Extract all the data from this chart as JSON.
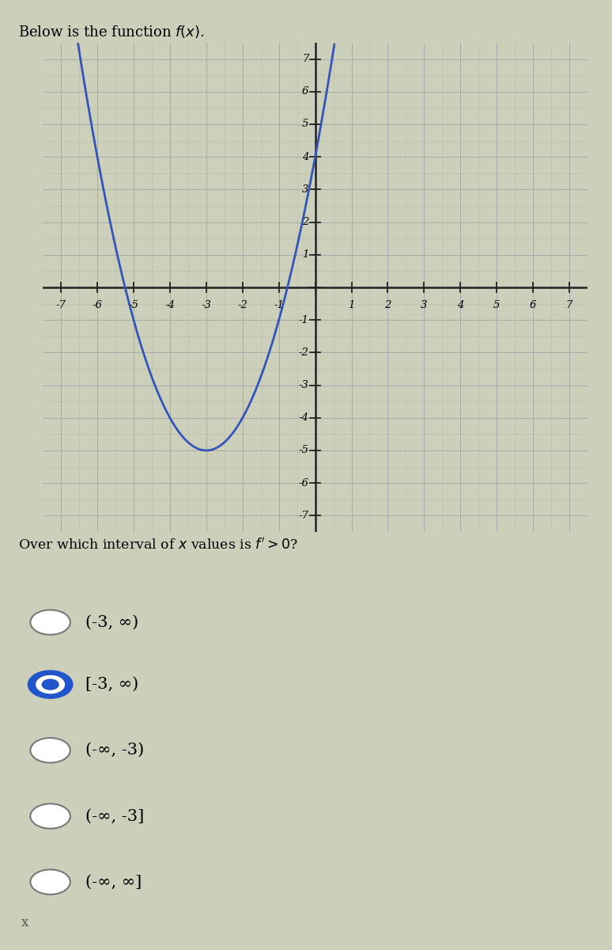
{
  "title_text": "Below is the function $f(x)$.",
  "graph_xlim": [
    -7.5,
    7.5
  ],
  "graph_ylim": [
    -7.5,
    7.5
  ],
  "x_ticks": [
    -7,
    -6,
    -5,
    -4,
    -3,
    -2,
    -1,
    1,
    2,
    3,
    4,
    5,
    6,
    7
  ],
  "y_ticks": [
    -7,
    -6,
    -5,
    -4,
    -3,
    -2,
    -1,
    1,
    2,
    3,
    4,
    5,
    6,
    7
  ],
  "parabola_vertex_x": -3,
  "parabola_vertex_y": -5,
  "parabola_a": 1,
  "curve_color": "#3355bb",
  "curve_linewidth": 2.0,
  "bg_color": "#cccfba",
  "grid_color": "#aaaaaa",
  "axis_color": "#222222",
  "question_text": "Over which interval of $x$ values is $f'> 0$?",
  "options": [
    "(-3, ∞)",
    "[-3, ∞)",
    "(-∞, -3)",
    "(-∞, -3]",
    "(-∞, ∞]"
  ],
  "selected_index": 1,
  "box_border_color": "#8b2020",
  "answer_box_bg": "#cccebc"
}
